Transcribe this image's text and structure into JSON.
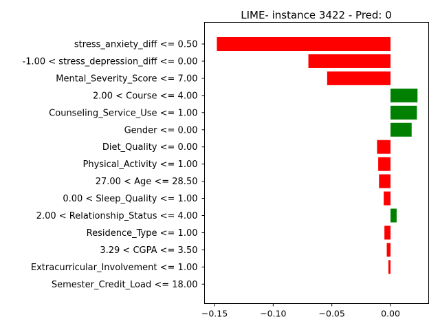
{
  "chart_data": {
    "type": "bar",
    "orientation": "horizontal",
    "title": "LIME- instance 3422 - Pred: 0",
    "xlabel": "",
    "ylabel": "",
    "xlim": [
      -0.1585,
      0.0325
    ],
    "xticks": [
      -0.15,
      -0.1,
      -0.05,
      0.0
    ],
    "xtick_labels": [
      "−0.15",
      "−0.10",
      "−0.05",
      "0.00"
    ],
    "grid": false,
    "colors": {
      "positive": "#008000",
      "negative": "#ff0000"
    },
    "categories": [
      "stress_anxiety_diff <= 0.50",
      "-1.00 < stress_depression_diff <= 0.00",
      "Mental_Severity_Score <= 7.00",
      "2.00 < Course <= 4.00",
      "Counseling_Service_Use <= 1.00",
      "Gender <= 0.00",
      "Diet_Quality <= 0.00",
      "Physical_Activity <= 1.00",
      "27.00 < Age <= 28.50",
      "0.00 < Sleep_Quality <= 1.00",
      "2.00 < Relationship_Status <= 4.00",
      "Residence_Type <= 1.00",
      "3.29 < CGPA <= 3.50",
      "Extracurricular_Involvement <= 1.00",
      "Semester_Credit_Load <= 18.00"
    ],
    "values": [
      -0.148,
      -0.07,
      -0.054,
      0.023,
      0.0225,
      0.018,
      -0.0115,
      -0.0105,
      -0.0098,
      -0.0058,
      0.0052,
      -0.0052,
      -0.0032,
      -0.0018,
      0.0
    ]
  }
}
